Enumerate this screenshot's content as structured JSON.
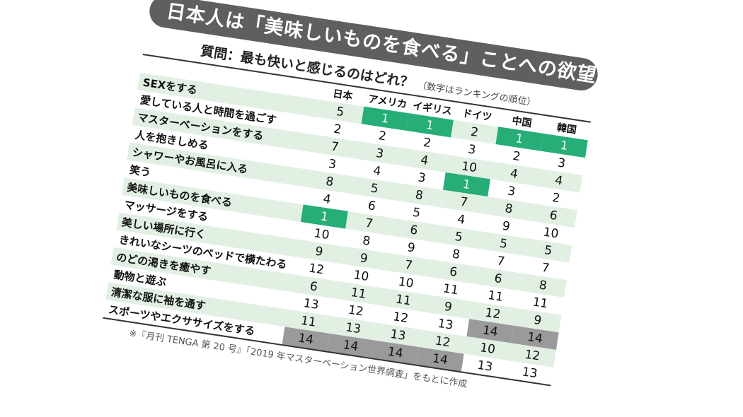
{
  "title": "日本人は「美味しいものを食べる」ことへの欲望が強い",
  "question": "質問：最も快いと感じるのはどれ？",
  "note": "（数字はランキングの順位）",
  "colors": {
    "rank1": "#27ad78",
    "rank14": "#9a9a9a",
    "row_alt": "#e2f0e4",
    "title_bg": "#5f5f5f"
  },
  "columns": [
    "日本",
    "アメリカ",
    "イギリス",
    "ドイツ",
    "中国",
    "韓国"
  ],
  "rows": [
    {
      "label": "SEXをする",
      "values": [
        5,
        1,
        1,
        2,
        1,
        1
      ]
    },
    {
      "label": "愛している人と時間を過ごす",
      "values": [
        2,
        2,
        2,
        3,
        2,
        3
      ]
    },
    {
      "label": "マスターベーションをする",
      "values": [
        7,
        3,
        4,
        10,
        4,
        4
      ]
    },
    {
      "label": "人を抱きしめる",
      "values": [
        3,
        4,
        3,
        1,
        3,
        2
      ]
    },
    {
      "label": "シャワーやお風呂に入る",
      "values": [
        8,
        5,
        8,
        7,
        8,
        6
      ]
    },
    {
      "label": "笑う",
      "values": [
        4,
        6,
        5,
        4,
        9,
        10
      ]
    },
    {
      "label": "美味しいものを食べる",
      "values": [
        1,
        7,
        6,
        5,
        5,
        5
      ]
    },
    {
      "label": "マッサージをする",
      "values": [
        10,
        8,
        9,
        8,
        7,
        7
      ]
    },
    {
      "label": "美しい場所に行く",
      "values": [
        9,
        9,
        7,
        6,
        6,
        8
      ]
    },
    {
      "label": "きれいなシーツのベッドで横たわる",
      "values": [
        12,
        10,
        10,
        11,
        11,
        11
      ]
    },
    {
      "label": "のどの渇きを癒やす",
      "values": [
        6,
        11,
        11,
        9,
        12,
        9
      ]
    },
    {
      "label": "動物と遊ぶ",
      "values": [
        13,
        12,
        12,
        13,
        14,
        14
      ]
    },
    {
      "label": "清潔な服に袖を通す",
      "values": [
        11,
        13,
        13,
        12,
        10,
        12
      ]
    },
    {
      "label": "スポーツやエクササイズをする",
      "values": [
        14,
        14,
        14,
        14,
        13,
        13
      ]
    }
  ],
  "footnote": "※『月刊 TENGA 第 20 号』「2019 年マスターベーション世界調査」をもとに作成"
}
